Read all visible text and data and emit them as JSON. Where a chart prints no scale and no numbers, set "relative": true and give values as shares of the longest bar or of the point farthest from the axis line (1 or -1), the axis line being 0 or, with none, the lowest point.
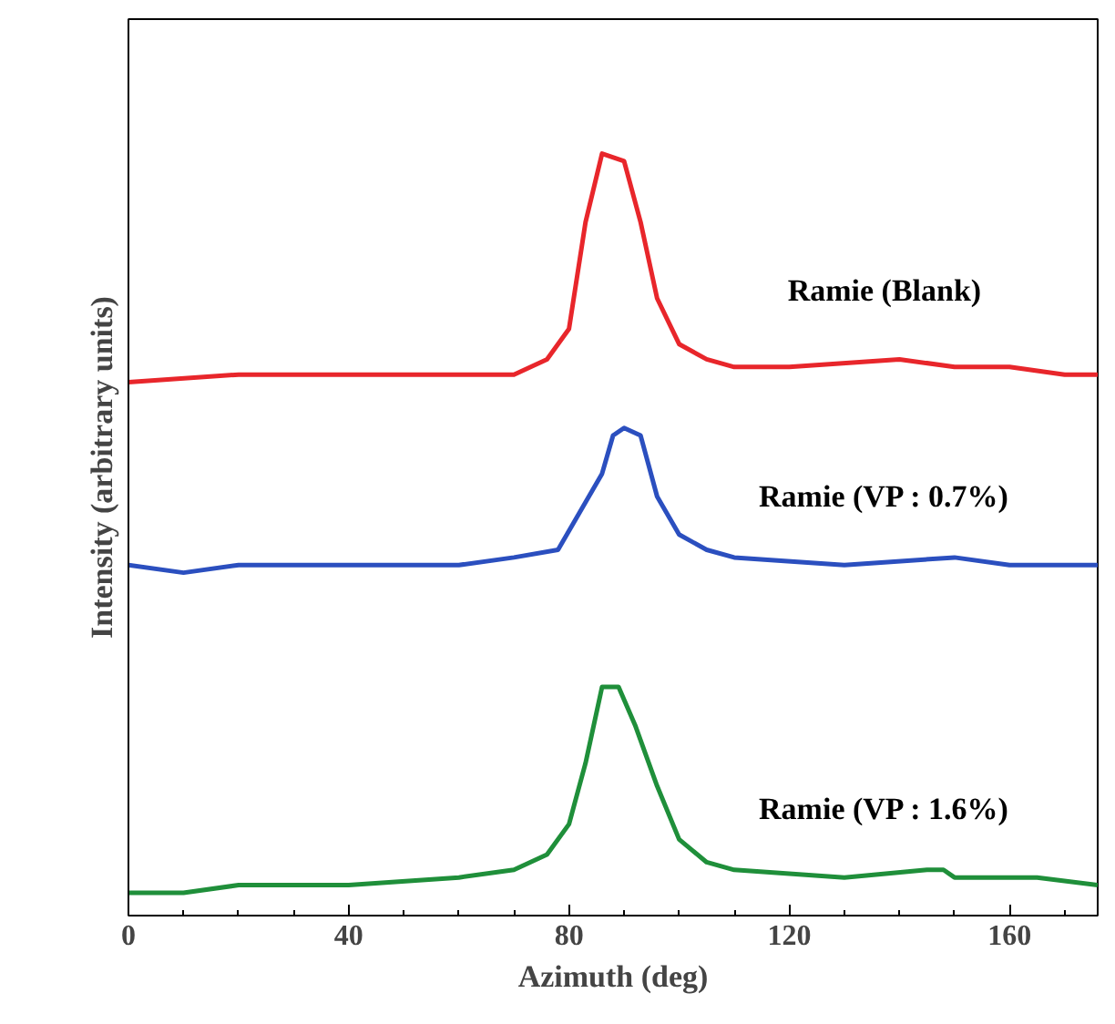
{
  "chart_data": {
    "type": "line",
    "relative": true,
    "xlabel": "Azimuth (deg)",
    "ylabel": "Intensity (arbitrary units)",
    "xlim": [
      0,
      176
    ],
    "xticks": [
      0,
      40,
      80,
      120,
      160
    ],
    "grid": false,
    "legend": false,
    "series": [
      {
        "name": "Ramie (Blank)",
        "color": "#e8262b",
        "x": [
          0,
          20,
          40,
          60,
          70,
          76,
          80,
          83,
          86,
          90,
          93,
          96,
          100,
          105,
          110,
          120,
          140,
          150,
          160,
          170,
          176
        ],
        "values": [
          0.7,
          0.71,
          0.71,
          0.71,
          0.71,
          0.73,
          0.77,
          0.91,
          1.0,
          0.99,
          0.91,
          0.81,
          0.75,
          0.73,
          0.72,
          0.72,
          0.73,
          0.72,
          0.72,
          0.71,
          0.71
        ]
      },
      {
        "name": "Ramie (VP : 0.7%)",
        "color": "#2b4fbf",
        "x": [
          0,
          10,
          20,
          40,
          60,
          70,
          78,
          82,
          86,
          88,
          90,
          93,
          96,
          100,
          105,
          110,
          130,
          150,
          160,
          170,
          176
        ],
        "values": [
          0.46,
          0.45,
          0.46,
          0.46,
          0.46,
          0.47,
          0.48,
          0.53,
          0.58,
          0.63,
          0.64,
          0.63,
          0.55,
          0.5,
          0.48,
          0.47,
          0.46,
          0.47,
          0.46,
          0.46,
          0.46
        ]
      },
      {
        "name": "Ramie (VP : 1.6%)",
        "color": "#1f8f3a",
        "x": [
          0,
          10,
          20,
          40,
          60,
          70,
          76,
          80,
          83,
          86,
          89,
          92,
          96,
          100,
          105,
          110,
          130,
          145,
          148,
          150,
          165,
          176
        ],
        "values": [
          0.03,
          0.03,
          0.04,
          0.04,
          0.05,
          0.06,
          0.08,
          0.12,
          0.2,
          0.3,
          0.3,
          0.25,
          0.17,
          0.1,
          0.07,
          0.06,
          0.05,
          0.06,
          0.06,
          0.05,
          0.05,
          0.04
        ]
      }
    ]
  }
}
